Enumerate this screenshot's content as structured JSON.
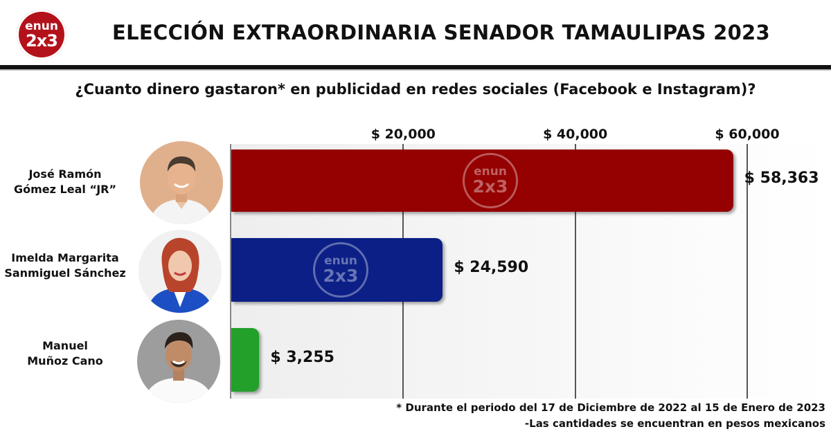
{
  "brand": {
    "logo_line1": "enun",
    "logo_line2": "2x3"
  },
  "title": "ELECCIÓN EXTRAORDINARIA SENADOR TAMAULIPAS 2023",
  "subtitle": "¿Cuanto dinero gastaron* en publicidad en redes sociales (Facebook e Instagram)?",
  "chart_data": {
    "type": "bar",
    "orientation": "horizontal",
    "categories": [
      "José Ramón Gómez Leal “JR”",
      "Imelda Margarita Sanmiguel Sánchez",
      "Manuel Muñoz Cano"
    ],
    "category_lines": [
      [
        "José Ramón",
        "Gómez Leal “JR”"
      ],
      [
        "Imelda Margarita",
        "Sanmiguel Sánchez"
      ],
      [
        "Manuel",
        "Muñoz Cano"
      ]
    ],
    "values": [
      58363,
      24590,
      3255
    ],
    "value_labels": [
      "$ 58,363",
      "$ 24,590",
      "$ 3,255"
    ],
    "colors": [
      "#950000",
      "#0b1f86",
      "#22a02a"
    ],
    "xlim": [
      0,
      60000
    ],
    "ticks": [
      20000,
      40000,
      60000
    ],
    "tick_labels": [
      "$ 20,000",
      "$ 40,000",
      "$ 60,000"
    ],
    "tick_position": "top",
    "grid": true,
    "watermark_on_bars": [
      true,
      true,
      false
    ]
  },
  "footnotes": {
    "line1": "* Durante el periodo del 17 de Diciembre de 2022 al 15 de Enero de 2023",
    "line2": "-Las cantidades se encuentran en pesos mexicanos"
  }
}
